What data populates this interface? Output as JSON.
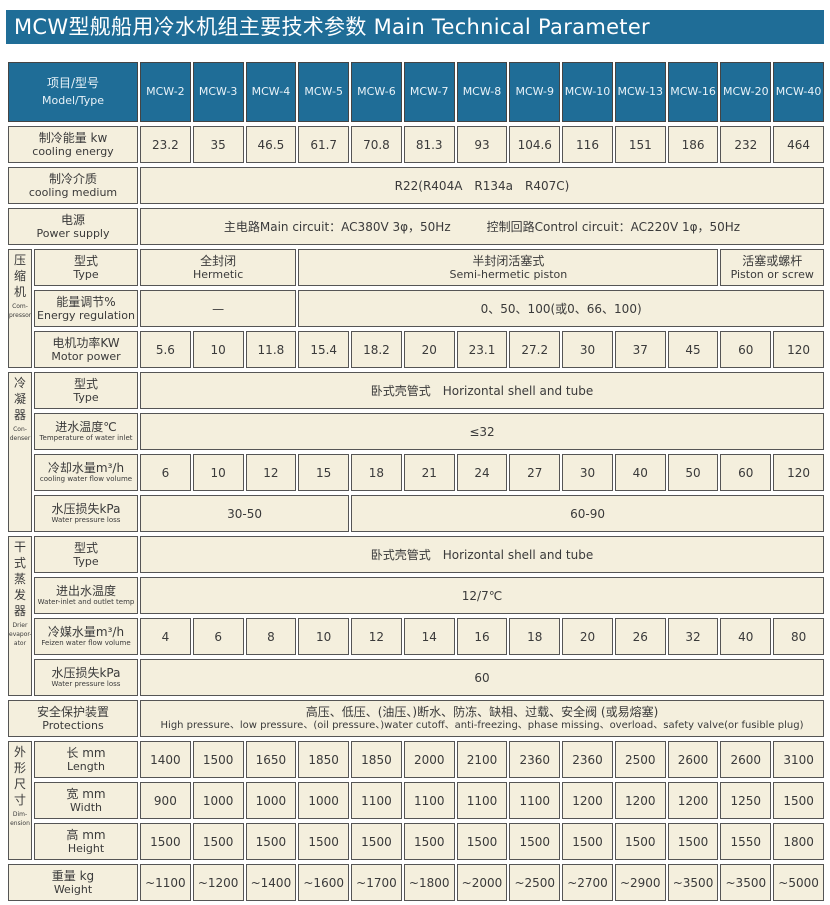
{
  "title": "MCW型舰船用冷水机组主要技术参数 Main Technical Parameter",
  "header": {
    "label_cn": "项目/型号",
    "label_en": "Model/Type",
    "models": [
      "MCW-2",
      "MCW-3",
      "MCW-4",
      "MCW-5",
      "MCW-6",
      "MCW-7",
      "MCW-8",
      "MCW-9",
      "MCW-10",
      "MCW-13",
      "MCW-16",
      "MCW-20",
      "MCW-40"
    ]
  },
  "groups": {
    "compressor": {
      "cn": [
        "压",
        "缩",
        "机"
      ],
      "en": "Com-pressor"
    },
    "condenser": {
      "cn": [
        "冷",
        "凝",
        "器"
      ],
      "en": "Con-denser"
    },
    "evaporator": {
      "cn": [
        "干",
        "式",
        "蒸",
        "发",
        "器"
      ],
      "en": "Drier evapor-ator"
    },
    "dimension": {
      "cn": [
        "外",
        "形",
        "尺",
        "寸"
      ],
      "en": "Dim-ension"
    }
  },
  "rows": [
    {
      "id": "cooling-energy",
      "label_cn": "制冷能量 kw",
      "label_en": "cooling energy",
      "cells": [
        {
          "t": "23.2"
        },
        {
          "t": "35"
        },
        {
          "t": "46.5"
        },
        {
          "t": "61.7"
        },
        {
          "t": "70.8"
        },
        {
          "t": "81.3"
        },
        {
          "t": "93"
        },
        {
          "t": "104.6"
        },
        {
          "t": "116"
        },
        {
          "t": "151"
        },
        {
          "t": "186"
        },
        {
          "t": "232"
        },
        {
          "t": "464"
        }
      ]
    },
    {
      "id": "cooling-medium",
      "label_cn": "制冷介质",
      "label_en": "cooling medium",
      "cells": [
        {
          "t": "R22(R404A　R134a　R407C)",
          "span": 13
        }
      ]
    },
    {
      "id": "power-supply",
      "label_cn": "电源",
      "label_en": "Power supply",
      "cells": [
        {
          "t": "主电路Main circuit：AC380V 3φ，50Hz　　　控制回路Control circuit：AC220V 1φ，50Hz",
          "span": 13
        }
      ]
    },
    {
      "id": "compressor-type",
      "group": "compressor",
      "group_rows": 3,
      "label_cn": "型式",
      "label_en": "Type",
      "cells": [
        {
          "cn": "全封闭",
          "en": "Hermetic",
          "span": 3
        },
        {
          "cn": "半封闭活塞式",
          "en": "Semi-hermetic piston",
          "span": 8
        },
        {
          "cn": "活塞或螺杆",
          "en": "Piston or screw",
          "span": 2
        }
      ]
    },
    {
      "id": "energy-regulation",
      "label_cn": "能量调节%",
      "label_en": "Energy regulation",
      "cells": [
        {
          "t": "—",
          "span": 3
        },
        {
          "t": "0、50、100(或0、66、100)",
          "span": 10
        }
      ]
    },
    {
      "id": "motor-power",
      "label_cn": "电机功率KW",
      "label_en": "Motor power",
      "cells": [
        {
          "t": "5.6"
        },
        {
          "t": "10"
        },
        {
          "t": "11.8"
        },
        {
          "t": "15.4"
        },
        {
          "t": "18.2"
        },
        {
          "t": "20"
        },
        {
          "t": "23.1"
        },
        {
          "t": "27.2"
        },
        {
          "t": "30"
        },
        {
          "t": "37"
        },
        {
          "t": "45"
        },
        {
          "t": "60"
        },
        {
          "t": "120"
        }
      ]
    },
    {
      "id": "condenser-type",
      "group": "condenser",
      "group_rows": 4,
      "label_cn": "型式",
      "label_en": "Type",
      "cells": [
        {
          "t": "卧式壳管式　Horizontal shell and tube",
          "span": 13
        }
      ]
    },
    {
      "id": "water-inlet-temp",
      "label_cn": "进水温度℃",
      "label_en": "Temperature of water inlet",
      "small_en": true,
      "cells": [
        {
          "t": "≤32",
          "span": 13
        }
      ]
    },
    {
      "id": "cooling-water-flow",
      "label_cn": "冷却水量m³/h",
      "label_en": "cooling water flow volume",
      "small_en": true,
      "cells": [
        {
          "t": "6"
        },
        {
          "t": "10"
        },
        {
          "t": "12"
        },
        {
          "t": "15"
        },
        {
          "t": "18"
        },
        {
          "t": "21"
        },
        {
          "t": "24"
        },
        {
          "t": "27"
        },
        {
          "t": "30"
        },
        {
          "t": "40"
        },
        {
          "t": "50"
        },
        {
          "t": "60"
        },
        {
          "t": "120"
        }
      ]
    },
    {
      "id": "condenser-pressure-loss",
      "label_cn": "水压损失kPa",
      "label_en": "Water pressure loss",
      "small_en": true,
      "cells": [
        {
          "t": "30-50",
          "span": 4
        },
        {
          "t": "60-90",
          "span": 9
        }
      ]
    },
    {
      "id": "evaporator-type",
      "group": "evaporator",
      "group_rows": 4,
      "label_cn": "型式",
      "label_en": "Type",
      "cells": [
        {
          "t": "卧式壳管式　Horizontal shell and tube",
          "span": 13
        }
      ]
    },
    {
      "id": "water-inlet-outlet-temp",
      "label_cn": "进出水温度",
      "label_en": "Water-inlet and outlet temp",
      "small_en": true,
      "cells": [
        {
          "t": "12/7℃",
          "span": 13
        }
      ]
    },
    {
      "id": "frozen-water-flow",
      "label_cn": "冷媒水量m³/h",
      "label_en": "Feizen water flow volume",
      "small_en": true,
      "cells": [
        {
          "t": "4"
        },
        {
          "t": "6"
        },
        {
          "t": "8"
        },
        {
          "t": "10"
        },
        {
          "t": "12"
        },
        {
          "t": "14"
        },
        {
          "t": "16"
        },
        {
          "t": "18"
        },
        {
          "t": "20"
        },
        {
          "t": "26"
        },
        {
          "t": "32"
        },
        {
          "t": "40"
        },
        {
          "t": "80"
        }
      ]
    },
    {
      "id": "evaporator-pressure-loss",
      "label_cn": "水压损失kPa",
      "label_en": "Water pressure loss",
      "small_en": true,
      "cells": [
        {
          "t": "60",
          "span": 13
        }
      ]
    },
    {
      "id": "protections",
      "label_cn": "安全保护装置",
      "label_en": "Protections",
      "cells": [
        {
          "cn": "高压、低压、(油压、)断水、防冻、缺相、过载、安全阀 (或易熔塞)",
          "en": "High pressure、low pressure、(oil pressure、)water cutoff、anti-freezing、phase missing、overload、safety valve(or fusible plug)",
          "span": 13,
          "prot": true
        }
      ]
    },
    {
      "id": "length",
      "group": "dimension",
      "group_rows": 3,
      "label_cn": "长 mm",
      "label_en": "Length",
      "cells": [
        {
          "t": "1400"
        },
        {
          "t": "1500"
        },
        {
          "t": "1650"
        },
        {
          "t": "1850"
        },
        {
          "t": "1850"
        },
        {
          "t": "2000"
        },
        {
          "t": "2100"
        },
        {
          "t": "2360"
        },
        {
          "t": "2360"
        },
        {
          "t": "2500"
        },
        {
          "t": "2600"
        },
        {
          "t": "2600"
        },
        {
          "t": "3100"
        }
      ]
    },
    {
      "id": "width",
      "label_cn": "宽 mm",
      "label_en": "Width",
      "cells": [
        {
          "t": "900"
        },
        {
          "t": "1000"
        },
        {
          "t": "1000"
        },
        {
          "t": "1000"
        },
        {
          "t": "1100"
        },
        {
          "t": "1100"
        },
        {
          "t": "1100"
        },
        {
          "t": "1100"
        },
        {
          "t": "1200"
        },
        {
          "t": "1200"
        },
        {
          "t": "1200"
        },
        {
          "t": "1250"
        },
        {
          "t": "1500"
        }
      ]
    },
    {
      "id": "height",
      "label_cn": "高 mm",
      "label_en": "Height",
      "cells": [
        {
          "t": "1500"
        },
        {
          "t": "1500"
        },
        {
          "t": "1500"
        },
        {
          "t": "1500"
        },
        {
          "t": "1500"
        },
        {
          "t": "1500"
        },
        {
          "t": "1500"
        },
        {
          "t": "1500"
        },
        {
          "t": "1500"
        },
        {
          "t": "1500"
        },
        {
          "t": "1500"
        },
        {
          "t": "1550"
        },
        {
          "t": "1800"
        }
      ]
    },
    {
      "id": "weight",
      "label_cn": "重量 kg",
      "label_en": "Weight",
      "cells": [
        {
          "t": "~1100"
        },
        {
          "t": "~1200"
        },
        {
          "t": "~1400"
        },
        {
          "t": "~1600"
        },
        {
          "t": "~1700"
        },
        {
          "t": "~1800"
        },
        {
          "t": "~2000"
        },
        {
          "t": "~2500"
        },
        {
          "t": "~2700"
        },
        {
          "t": "~2900"
        },
        {
          "t": "~3500"
        },
        {
          "t": "~3500"
        },
        {
          "t": "~5000"
        }
      ]
    }
  ],
  "colors": {
    "header_bg": "#1f6d97",
    "cell_bg": "#f4efdd",
    "border": "#555555"
  }
}
